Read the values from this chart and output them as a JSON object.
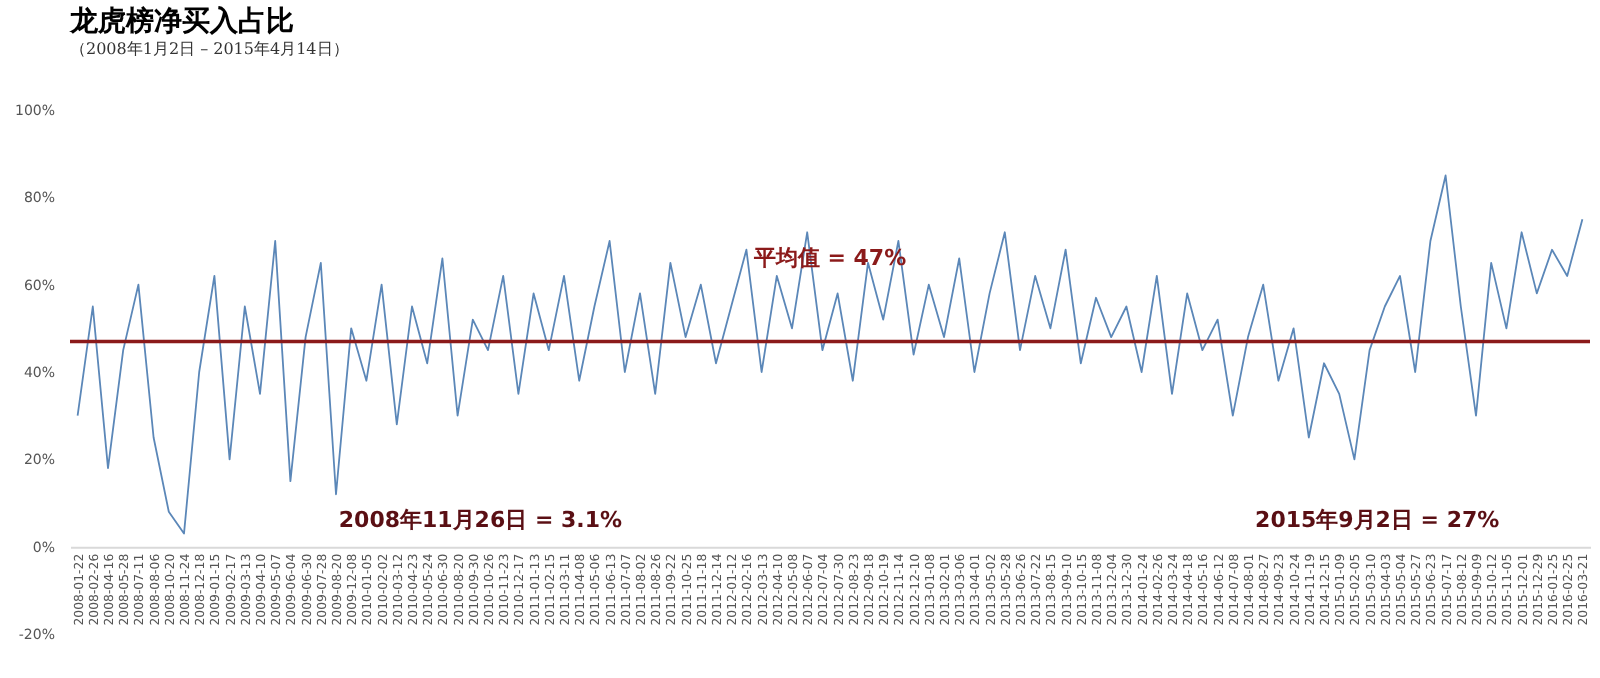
{
  "chart_data": {
    "type": "line",
    "title": "龙虎榜净买入占比",
    "subtitle": "（2008年1月2日 – 2015年4月14日）",
    "categories": [
      "2008-01-22",
      "2008-02-26",
      "2008-04-16",
      "2008-05-28",
      "2008-07-11",
      "2008-08-06",
      "2008-10-20",
      "2008-11-24",
      "2008-12-18",
      "2009-01-15",
      "2009-02-17",
      "2009-03-13",
      "2009-04-10",
      "2009-05-07",
      "2009-06-04",
      "2009-06-30",
      "2009-07-28",
      "2009-08-20",
      "2009-12-08",
      "2010-01-05",
      "2010-02-02",
      "2010-03-12",
      "2010-04-23",
      "2010-05-24",
      "2010-06-30",
      "2010-08-20",
      "2010-09-30",
      "2010-10-26",
      "2010-11-23",
      "2010-12-17",
      "2011-01-13",
      "2011-02-15",
      "2011-03-11",
      "2011-04-08",
      "2011-05-06",
      "2011-06-13",
      "2011-07-07",
      "2011-08-02",
      "2011-08-26",
      "2011-09-22",
      "2011-10-25",
      "2011-11-18",
      "2011-12-14",
      "2012-01-12",
      "2012-02-16",
      "2012-03-13",
      "2012-04-10",
      "2012-05-08",
      "2012-06-07",
      "2012-07-04",
      "2012-07-30",
      "2012-08-23",
      "2012-09-18",
      "2012-10-19",
      "2012-11-14",
      "2012-12-10",
      "2013-01-08",
      "2013-02-01",
      "2013-03-06",
      "2013-04-01",
      "2013-05-02",
      "2013-05-28",
      "2013-06-26",
      "2013-07-22",
      "2013-08-15",
      "2013-09-10",
      "2013-10-15",
      "2013-11-08",
      "2013-12-04",
      "2013-12-30",
      "2014-01-24",
      "2014-02-26",
      "2014-03-24",
      "2014-04-18",
      "2014-05-16",
      "2014-06-12",
      "2014-07-08",
      "2014-08-01",
      "2014-08-27",
      "2014-09-23",
      "2014-10-24",
      "2014-11-19",
      "2014-12-15",
      "2015-01-09",
      "2015-02-05",
      "2015-03-10",
      "2015-04-03",
      "2015-05-04",
      "2015-05-27",
      "2015-06-23",
      "2015-07-17",
      "2015-08-12",
      "2015-09-09",
      "2015-10-12",
      "2015-11-05",
      "2015-12-01",
      "2015-12-29",
      "2016-01-25",
      "2016-02-25",
      "2016-03-21"
    ],
    "series": [
      {
        "color": "#5b87b8",
        "values": [
          30,
          55,
          18,
          45,
          60,
          25,
          8,
          3,
          40,
          62,
          20,
          55,
          35,
          70,
          15,
          48,
          65,
          12,
          50,
          38,
          60,
          28,
          55,
          42,
          66,
          30,
          52,
          45,
          62,
          35,
          58,
          45,
          62,
          38,
          55,
          70,
          40,
          58,
          35,
          65,
          48,
          60,
          42,
          55,
          68,
          40,
          62,
          50,
          72,
          45,
          58,
          38,
          65,
          52,
          70,
          44,
          60,
          48,
          66,
          40,
          58,
          72,
          45,
          62,
          50,
          68,
          42,
          57,
          48,
          55,
          40,
          62,
          35,
          58,
          45,
          52,
          30,
          48,
          60,
          38,
          50,
          25,
          42,
          35,
          20,
          45,
          55,
          62,
          40,
          70,
          85,
          55,
          30,
          65,
          50,
          72,
          58,
          68,
          62,
          75
        ]
      }
    ],
    "ylim": [
      -20,
      100
    ],
    "yticks": [
      {
        "value": -20,
        "label": "-20%"
      },
      {
        "value": 0,
        "label": "0%"
      },
      {
        "value": 20,
        "label": "20%"
      },
      {
        "value": 40,
        "label": "40%"
      },
      {
        "value": 60,
        "label": "60%"
      },
      {
        "value": 80,
        "label": "80%"
      },
      {
        "value": 100,
        "label": "100%"
      }
    ],
    "ref_lines": [
      {
        "axis": "y",
        "value": 47,
        "label": "平均值 = 47%",
        "color": "#8b1a1a"
      }
    ],
    "annotations": [
      "2008年11月26日 = 3.1%",
      "2015年9月2日 = 27%"
    ],
    "grid": false
  }
}
